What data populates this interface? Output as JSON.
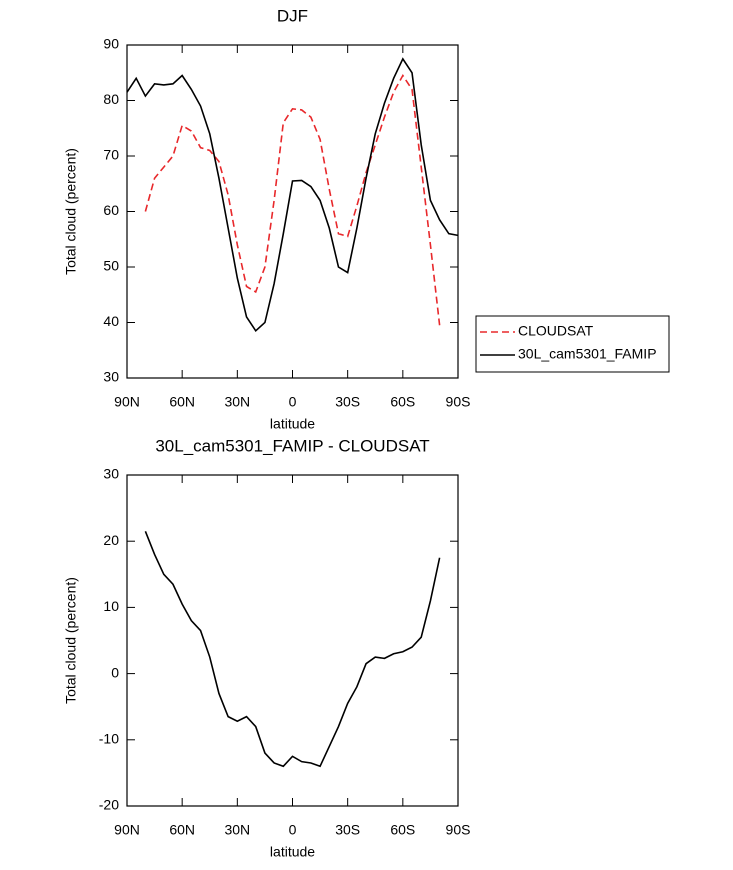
{
  "chart_data": [
    {
      "type": "line",
      "title": "DJF",
      "xlabel": "latitude",
      "ylabel": "Total cloud (percent)",
      "x": [
        90,
        85,
        80,
        75,
        70,
        65,
        60,
        55,
        50,
        45,
        40,
        35,
        30,
        25,
        20,
        15,
        10,
        5,
        0,
        -5,
        -10,
        -15,
        -20,
        -25,
        -30,
        -35,
        -40,
        -45,
        -50,
        -55,
        -60,
        -65,
        -70,
        -75,
        -80,
        -85,
        -90
      ],
      "series": [
        {
          "name": "CLOUDSAT",
          "color": "#e8282b",
          "dash": "dashed",
          "values": [
            null,
            null,
            60,
            66,
            68,
            70,
            75.5,
            74.5,
            71.5,
            71,
            69,
            63,
            54,
            46.5,
            45.5,
            50,
            62,
            76,
            78.5,
            78.3,
            77,
            73,
            64,
            56,
            55.5,
            61,
            67,
            72,
            77,
            81.5,
            84.5,
            82,
            68,
            54,
            39.5,
            null,
            null
          ]
        },
        {
          "name": "30L_cam5301_FAMIP",
          "color": "#000000",
          "dash": "solid",
          "values": [
            81.5,
            84,
            80.8,
            83,
            82.8,
            83,
            84.5,
            82,
            79,
            74,
            66,
            57,
            48,
            41,
            38.5,
            40,
            47,
            56,
            65.5,
            65.6,
            64.5,
            62,
            57,
            50,
            49,
            57,
            66,
            74,
            79.5,
            84,
            87.5,
            85,
            72,
            62,
            58.5,
            56,
            55.7
          ]
        }
      ],
      "xlim": [
        90,
        -90
      ],
      "xticks": [
        {
          "value": 90,
          "label": "90N"
        },
        {
          "value": 60,
          "label": "60N"
        },
        {
          "value": 30,
          "label": "30N"
        },
        0,
        {
          "value": -30,
          "label": "30S"
        },
        {
          "value": -60,
          "label": "60S"
        },
        {
          "value": -90,
          "label": "90S"
        }
      ],
      "ylim": [
        30,
        90
      ],
      "yticks": [
        30,
        40,
        50,
        60,
        70,
        80,
        90
      ],
      "legend": "right"
    },
    {
      "type": "line",
      "title": "30L_cam5301_FAMIP - CLOUDSAT",
      "xlabel": "latitude",
      "ylabel": "Total cloud (percent)",
      "x": [
        80,
        75,
        70,
        65,
        60,
        55,
        50,
        45,
        40,
        35,
        30,
        25,
        20,
        15,
        10,
        5,
        0,
        -5,
        -10,
        -15,
        -20,
        -25,
        -30,
        -35,
        -40,
        -45,
        -50,
        -55,
        -60,
        -65,
        -70,
        -75,
        -80
      ],
      "series": [
        {
          "color": "#000000",
          "dash": "solid",
          "values": [
            21.5,
            18,
            15,
            13.5,
            10.5,
            8,
            6.5,
            2.5,
            -3,
            -6.5,
            -7.2,
            -6.5,
            -8,
            -12,
            -13.5,
            -14,
            -12.5,
            -13.3,
            -13.5,
            -14,
            -11,
            -8,
            -4.5,
            -2,
            1.5,
            2.5,
            2.3,
            3,
            3.3,
            4,
            5.5,
            11,
            17.5
          ]
        }
      ],
      "xlim": [
        90,
        -90
      ],
      "xticks": [
        {
          "value": 90,
          "label": "90N"
        },
        {
          "value": 60,
          "label": "60N"
        },
        {
          "value": 30,
          "label": "30N"
        },
        0,
        {
          "value": -30,
          "label": "30S"
        },
        {
          "value": -60,
          "label": "60S"
        },
        {
          "value": -90,
          "label": "90S"
        }
      ],
      "ylim": [
        -20,
        30
      ],
      "yticks": [
        -20,
        -10,
        0,
        10,
        20,
        30
      ]
    }
  ]
}
